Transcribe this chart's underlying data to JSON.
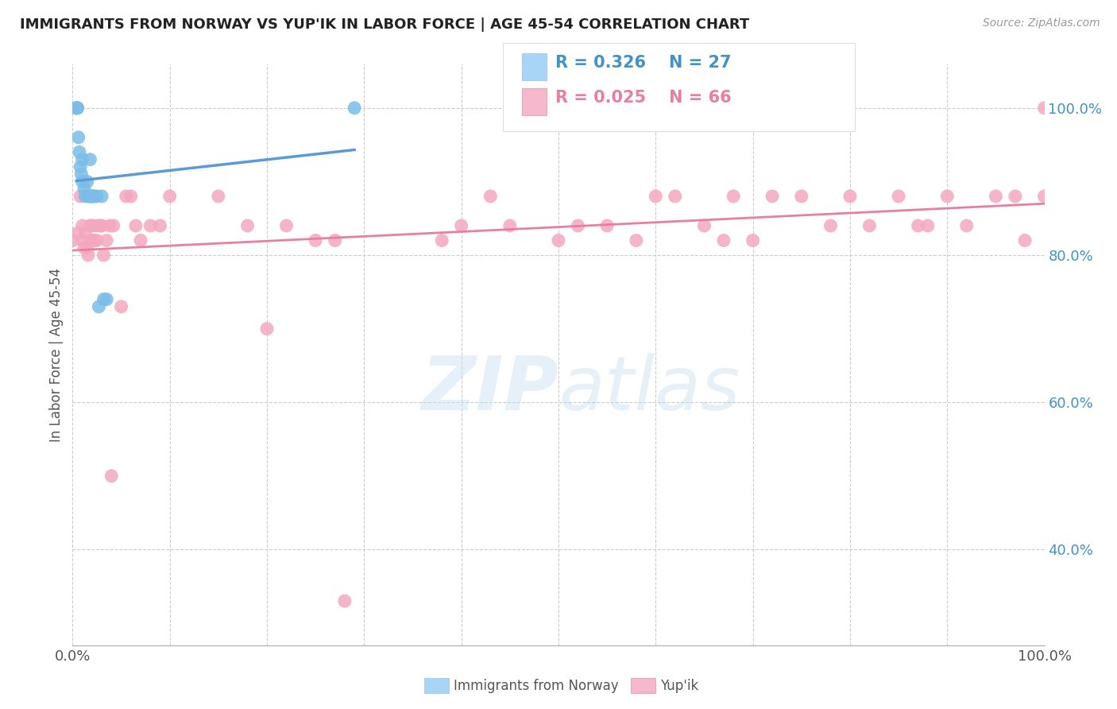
{
  "title": "IMMIGRANTS FROM NORWAY VS YUP'IK IN LABOR FORCE | AGE 45-54 CORRELATION CHART",
  "source": "Source: ZipAtlas.com",
  "ylabel": "In Labor Force | Age 45-54",
  "xlim": [
    0.0,
    1.0
  ],
  "ylim": [
    0.27,
    1.06
  ],
  "x_ticks": [
    0.0,
    0.1,
    0.2,
    0.3,
    0.4,
    0.5,
    0.6,
    0.7,
    0.8,
    0.9,
    1.0
  ],
  "x_tick_labels": [
    "0.0%",
    "",
    "",
    "",
    "",
    "",
    "",
    "",
    "",
    "",
    "100.0%"
  ],
  "y_ticks_right": [
    0.4,
    0.6,
    0.8,
    1.0
  ],
  "y_tick_labels_right": [
    "40.0%",
    "60.0%",
    "80.0%",
    "100.0%"
  ],
  "norway_color": "#7bbde8",
  "yupik_color": "#f4a8bf",
  "norway_R": 0.326,
  "norway_N": 27,
  "yupik_R": 0.025,
  "yupik_N": 66,
  "norway_line_color": "#5b9bd5",
  "yupik_line_color": "#e87fa0",
  "legend_color_norway": "#a8d4f5",
  "legend_color_yupik": "#f5b8cc",
  "watermark_color": "#d0e8f5",
  "background_color": "#ffffff",
  "grid_color": "#cccccc",
  "norway_x": [
    0.004,
    0.004,
    0.004,
    0.005,
    0.005,
    0.006,
    0.007,
    0.008,
    0.009,
    0.01,
    0.01,
    0.012,
    0.013,
    0.015,
    0.016,
    0.017,
    0.018,
    0.019,
    0.02,
    0.021,
    0.022,
    0.025,
    0.027,
    0.03,
    0.032,
    0.035,
    0.29
  ],
  "norway_y": [
    1.0,
    1.0,
    1.0,
    1.0,
    1.0,
    0.96,
    0.94,
    0.92,
    0.91,
    0.93,
    0.9,
    0.89,
    0.88,
    0.9,
    0.88,
    0.88,
    0.93,
    0.88,
    0.88,
    0.88,
    0.88,
    0.88,
    0.73,
    0.88,
    0.74,
    0.74,
    1.0
  ],
  "yupik_x": [
    0.0,
    0.005,
    0.008,
    0.01,
    0.01,
    0.012,
    0.013,
    0.015,
    0.016,
    0.018,
    0.02,
    0.02,
    0.022,
    0.025,
    0.025,
    0.028,
    0.03,
    0.032,
    0.035,
    0.038,
    0.04,
    0.042,
    0.05,
    0.055,
    0.06,
    0.065,
    0.07,
    0.08,
    0.09,
    0.1,
    0.15,
    0.18,
    0.2,
    0.22,
    0.25,
    0.27,
    0.28,
    0.38,
    0.4,
    0.43,
    0.45,
    0.5,
    0.52,
    0.55,
    0.58,
    0.6,
    0.62,
    0.65,
    0.67,
    0.68,
    0.7,
    0.72,
    0.75,
    0.78,
    0.8,
    0.82,
    0.85,
    0.87,
    0.88,
    0.9,
    0.92,
    0.95,
    0.97,
    0.98,
    1.0,
    1.0
  ],
  "yupik_y": [
    0.82,
    0.83,
    0.88,
    0.84,
    0.82,
    0.81,
    0.83,
    0.81,
    0.8,
    0.84,
    0.84,
    0.82,
    0.82,
    0.84,
    0.82,
    0.84,
    0.84,
    0.8,
    0.82,
    0.84,
    0.5,
    0.84,
    0.73,
    0.88,
    0.88,
    0.84,
    0.82,
    0.84,
    0.84,
    0.88,
    0.88,
    0.84,
    0.7,
    0.84,
    0.82,
    0.82,
    0.33,
    0.82,
    0.84,
    0.88,
    0.84,
    0.82,
    0.84,
    0.84,
    0.82,
    0.88,
    0.88,
    0.84,
    0.82,
    0.88,
    0.82,
    0.88,
    0.88,
    0.84,
    0.88,
    0.84,
    0.88,
    0.84,
    0.84,
    0.88,
    0.84,
    0.88,
    0.88,
    0.82,
    1.0,
    0.88
  ]
}
